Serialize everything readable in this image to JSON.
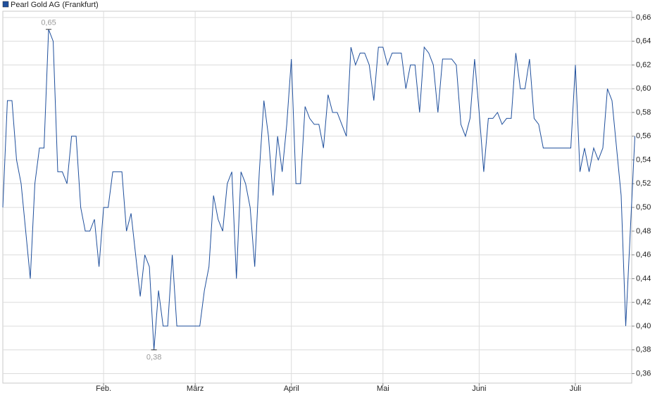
{
  "chart_data": {
    "type": "line",
    "series": [
      {
        "name": "Pearl Gold AG (Frankfurt)",
        "color": "#1f4f9c",
        "values": [
          0.5,
          0.59,
          0.59,
          0.54,
          0.52,
          0.48,
          0.44,
          0.52,
          0.55,
          0.55,
          0.65,
          0.64,
          0.53,
          0.53,
          0.52,
          0.56,
          0.56,
          0.5,
          0.48,
          0.48,
          0.49,
          0.45,
          0.5,
          0.5,
          0.53,
          0.53,
          0.53,
          0.48,
          0.495,
          0.46,
          0.425,
          0.46,
          0.45,
          0.38,
          0.43,
          0.4,
          0.4,
          0.46,
          0.4,
          0.4,
          0.4,
          0.4,
          0.4,
          0.4,
          0.43,
          0.45,
          0.51,
          0.49,
          0.48,
          0.52,
          0.53,
          0.44,
          0.53,
          0.52,
          0.5,
          0.45,
          0.53,
          0.59,
          0.56,
          0.51,
          0.56,
          0.53,
          0.57,
          0.625,
          0.52,
          0.52,
          0.585,
          0.575,
          0.57,
          0.57,
          0.55,
          0.595,
          0.58,
          0.58,
          0.57,
          0.56,
          0.635,
          0.62,
          0.63,
          0.63,
          0.62,
          0.59,
          0.635,
          0.635,
          0.62,
          0.63,
          0.63,
          0.63,
          0.6,
          0.62,
          0.62,
          0.58,
          0.635,
          0.63,
          0.62,
          0.58,
          0.625,
          0.625,
          0.625,
          0.62,
          0.57,
          0.56,
          0.575,
          0.625,
          0.58,
          0.53,
          0.575,
          0.575,
          0.58,
          0.57,
          0.575,
          0.575,
          0.63,
          0.6,
          0.6,
          0.625,
          0.575,
          0.57,
          0.55,
          0.55,
          0.55,
          0.55,
          0.55,
          0.55,
          0.55,
          0.62,
          0.53,
          0.55,
          0.53,
          0.55,
          0.54,
          0.55,
          0.6,
          0.59,
          0.55,
          0.51,
          0.4,
          0.48,
          0.56
        ]
      }
    ],
    "xlim": [
      0,
      137
    ],
    "xticks": [
      {
        "value": 22,
        "label": "Feb."
      },
      {
        "value": 42,
        "label": "März"
      },
      {
        "value": 63,
        "label": "April"
      },
      {
        "value": 83,
        "label": "Mai"
      },
      {
        "value": 104,
        "label": "Juni"
      },
      {
        "value": 125,
        "label": "Juli"
      }
    ],
    "ylim": [
      0.352,
      0.67
    ],
    "yticks": [
      {
        "value": 0.36,
        "label": "0,36"
      },
      {
        "value": 0.38,
        "label": "0,38"
      },
      {
        "value": 0.4,
        "label": "0,40"
      },
      {
        "value": 0.42,
        "label": "0,42"
      },
      {
        "value": 0.44,
        "label": "0,44"
      },
      {
        "value": 0.46,
        "label": "0,46"
      },
      {
        "value": 0.48,
        "label": "0,48"
      },
      {
        "value": 0.5,
        "label": "0,50"
      },
      {
        "value": 0.52,
        "label": "0,52"
      },
      {
        "value": 0.54,
        "label": "0,54"
      },
      {
        "value": 0.56,
        "label": "0,56"
      },
      {
        "value": 0.58,
        "label": "0,58"
      },
      {
        "value": 0.6,
        "label": "0,60"
      },
      {
        "value": 0.62,
        "label": "0,62"
      },
      {
        "value": 0.64,
        "label": "0,64"
      },
      {
        "value": 0.66,
        "label": "0,66"
      }
    ],
    "annotations": [
      {
        "x": 10,
        "y": 0.65,
        "label": "0,65"
      },
      {
        "x": 33,
        "y": 0.38,
        "label": "0,38"
      }
    ],
    "grid": true
  }
}
